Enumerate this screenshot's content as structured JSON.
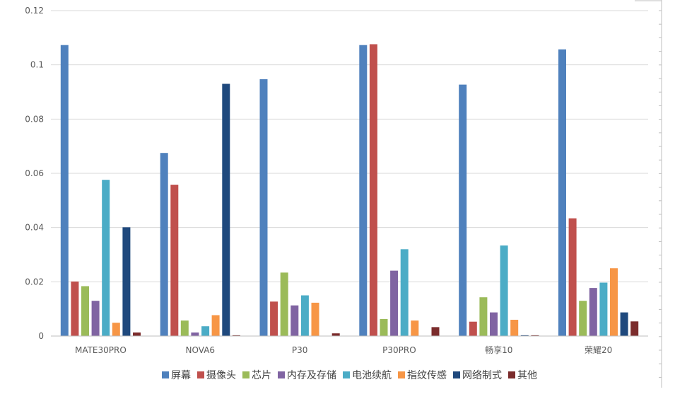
{
  "chart_data": {
    "type": "bar",
    "categories": [
      "MATE30PRO",
      "NOVA6",
      "P30",
      "P30PRO",
      "畅享10",
      "荣耀20"
    ],
    "series": [
      {
        "name": "屏幕",
        "color": "#4f81bd",
        "values": [
          0.1073,
          0.0675,
          0.0947,
          0.1073,
          0.0927,
          0.1057
        ]
      },
      {
        "name": "摄像头",
        "color": "#c0504d",
        "values": [
          0.0201,
          0.0558,
          0.0127,
          0.1076,
          0.0053,
          0.0434
        ]
      },
      {
        "name": "芯片",
        "color": "#9bbb59",
        "values": [
          0.0184,
          0.0057,
          0.0234,
          0.0063,
          0.0143,
          0.013
        ]
      },
      {
        "name": "内存及存储",
        "color": "#8064a2",
        "values": [
          0.013,
          0.0013,
          0.0113,
          0.0241,
          0.0087,
          0.0177
        ]
      },
      {
        "name": "电池续航",
        "color": "#4bacc6",
        "values": [
          0.0576,
          0.0036,
          0.015,
          0.032,
          0.0334,
          0.0197
        ]
      },
      {
        "name": "指纹传感",
        "color": "#f79646",
        "values": [
          0.0049,
          0.0077,
          0.0123,
          0.0057,
          0.006,
          0.025
        ]
      },
      {
        "name": "网络制式",
        "color": "#1f497d",
        "values": [
          0.0401,
          0.093,
          0.0,
          0.0,
          0.0003,
          0.0087
        ]
      },
      {
        "name": "其他",
        "color": "#7b2c2c",
        "values": [
          0.0013,
          0.0003,
          0.001,
          0.0033,
          0.0003,
          0.0054
        ]
      }
    ],
    "y_ticks": [
      "0",
      "0.02",
      "0.04",
      "0.06",
      "0.08",
      "0.1",
      "0.12"
    ],
    "ylim": [
      0,
      0.12
    ],
    "grid": true,
    "legend_position": "bottom"
  }
}
